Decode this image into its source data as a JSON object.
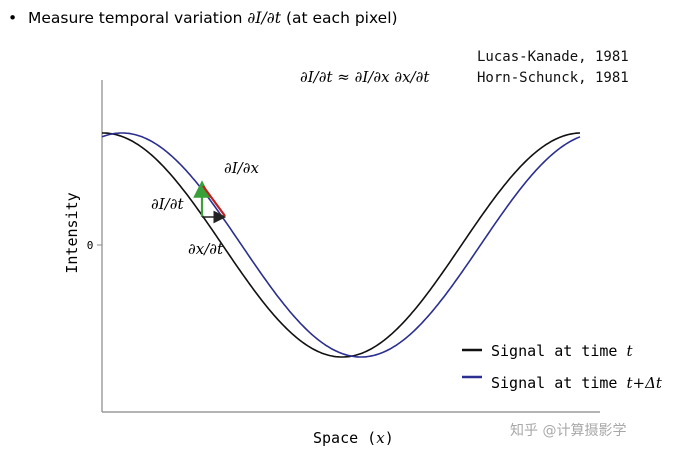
{
  "header": {
    "bullet": "•",
    "text": "Measure temporal variation ",
    "math": "∂I/∂t",
    "suffix": " (at each pixel)"
  },
  "references": {
    "line1": "Lucas-Kanade, 1981",
    "line2": "Horn-Schunck, 1981"
  },
  "equation": "∂I/∂t ≈ ∂I/∂x ∂x/∂t",
  "plot": {
    "ylabel": "Intensity",
    "ytick_zero": "0",
    "xlabel_text": "Space (",
    "xlabel_var": "x",
    "xlabel_close": ")"
  },
  "annotations": {
    "dIdx": "∂I/∂x",
    "dIdt": "∂I/∂t",
    "dxdt": "∂x/∂t"
  },
  "legend": {
    "item1_text": "Signal at time ",
    "item1_var": "t",
    "item1_color": "#111111",
    "item2_text": "Signal at time ",
    "item2_var": "t+Δt",
    "item2_color": "#2b2f8f"
  },
  "colors": {
    "derivative_green": "#3aa13a",
    "derivative_red": "#c0201f",
    "shift_arrow": "#222222"
  },
  "watermark": "知乎 @计算摄影学"
}
